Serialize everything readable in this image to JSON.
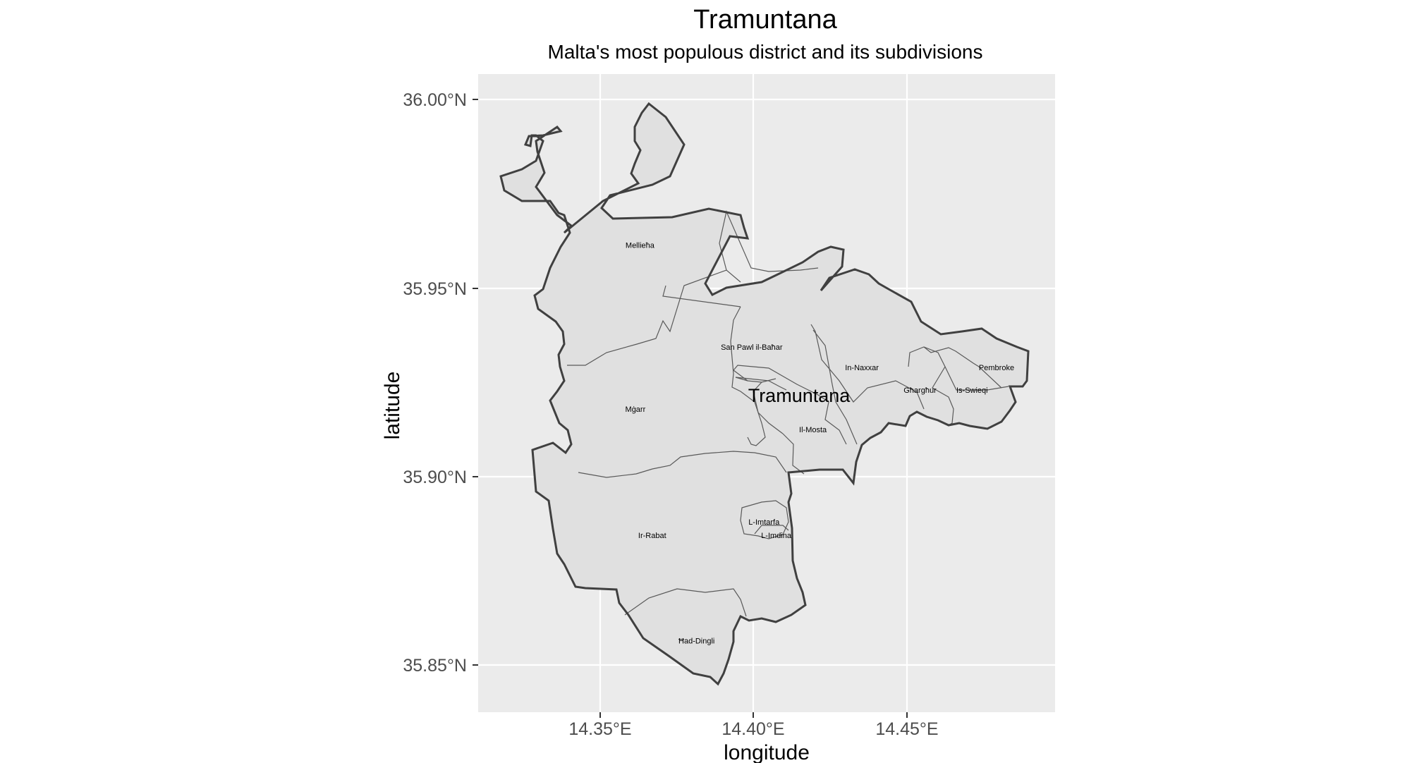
{
  "title": "Tramuntana",
  "subtitle": "Malta's most populous district and its subdivisions",
  "axes": {
    "x_label": "longitude",
    "y_label": "latitude",
    "x_ticks": [
      "14.35°E",
      "14.40°E",
      "14.45°E"
    ],
    "y_ticks": [
      "36.00°N",
      "35.95°N",
      "35.90°N",
      "35.85°N"
    ]
  },
  "district_label": "Tramuntana",
  "regions": [
    {
      "name": "Mellieħa",
      "lon": 14.363,
      "lat": 35.9615
    },
    {
      "name": "San Pawl il-Baħar",
      "lon": 14.3995,
      "lat": 35.9345
    },
    {
      "name": "In-Naxxar",
      "lon": 14.4355,
      "lat": 35.929
    },
    {
      "name": "Pembroke",
      "lon": 14.4795,
      "lat": 35.929
    },
    {
      "name": "Mġarr",
      "lon": 14.3615,
      "lat": 35.918
    },
    {
      "name": "Għargħur",
      "lon": 14.4545,
      "lat": 35.923
    },
    {
      "name": "Is-Swieqi",
      "lon": 14.4715,
      "lat": 35.923
    },
    {
      "name": "Il-Mosta",
      "lon": 14.4195,
      "lat": 35.9125
    },
    {
      "name": "L-Imtarfa",
      "lon": 14.4035,
      "lat": 35.888
    },
    {
      "name": "L-Imdina",
      "lon": 14.4075,
      "lat": 35.8845
    },
    {
      "name": "Ir-Rabat",
      "lon": 14.367,
      "lat": 35.8845
    },
    {
      "name": "Ħad-Dingli",
      "lon": 14.3815,
      "lat": 35.8565
    }
  ],
  "chart_data": {
    "type": "map",
    "title": "Tramuntana",
    "subtitle": "Malta's most populous district and its subdivisions",
    "xlabel": "longitude",
    "ylabel": "latitude",
    "xlim": [
      14.31,
      14.498
    ],
    "ylim": [
      35.838,
      36.007
    ],
    "x_ticks": [
      14.35,
      14.4,
      14.45
    ],
    "y_ticks": [
      35.85,
      35.9,
      35.95,
      36.0
    ],
    "grid": true,
    "fill_color": "#e0e0e0",
    "outline_color": "#404040",
    "panel_color": "#ebebeb"
  }
}
